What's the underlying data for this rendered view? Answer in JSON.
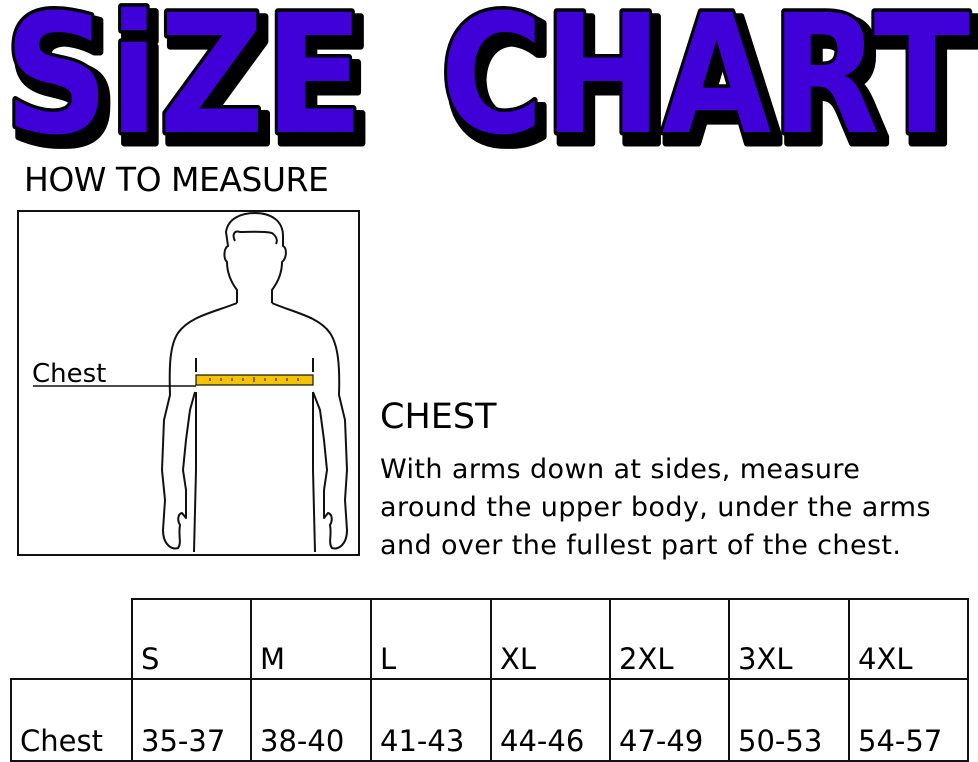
{
  "title": {
    "word1": "SiZE",
    "word2": "CHART",
    "fill_color": "#3f00d8",
    "outline_color": "#000000"
  },
  "how_to_measure": {
    "heading": "HOW TO MEASURE",
    "figure_label": "Chest",
    "tape_color": "#f5c400"
  },
  "chest_section": {
    "title": "CHEST",
    "lines": [
      "With arms down at sides, measure",
      "around the upper body, under the arms",
      "and over the fullest part of the chest."
    ]
  },
  "table": {
    "sizes": [
      "S",
      "M",
      "L",
      "XL",
      "2XL",
      "3XL",
      "4XL"
    ],
    "rows": [
      {
        "label": "Chest",
        "values": [
          "35-37",
          "38-40",
          "41-43",
          "44-46",
          "47-49",
          "50-53",
          "54-57"
        ]
      }
    ]
  }
}
